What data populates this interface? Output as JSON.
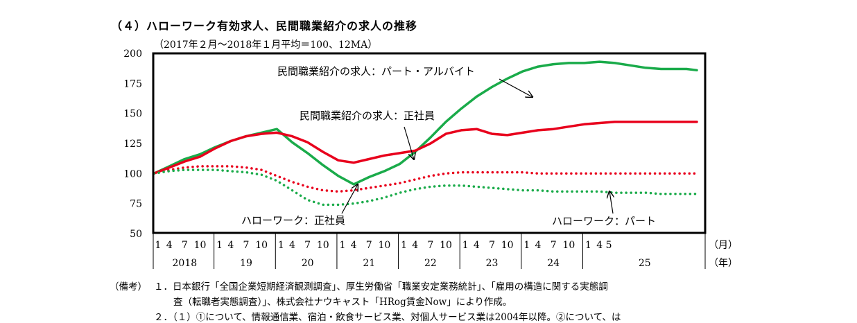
{
  "section_title": "（４）ハローワーク有効求人、民間職業紹介の求人の推移",
  "notes": {
    "label": "（備考）",
    "line1": "１．日本銀行「全国企業短期経済観測調査」、厚生労働省「職業安定業務統計」、「雇用の構造に関する実態調",
    "line2": "査（転職者実態調査）」、株式会社ナウキャスト「HRog賃金Now」により作成。",
    "line3": "２．（１）①について、情報通信業、宿泊・飲食サービス業、対個人サービス業は2004年以降。②について、は"
  },
  "chart_data": {
    "type": "line",
    "subtitle": "（2017年２月～2018年１月平均＝100、12MA）",
    "ylim": [
      50,
      200
    ],
    "yticks": [
      "200",
      "175",
      "150",
      "125",
      "100",
      "75",
      "50"
    ],
    "month_label": "（月）",
    "year_label": "（年）",
    "month_ticks": [
      [
        "1",
        "4",
        "7",
        "10"
      ],
      [
        "1",
        "4",
        "7",
        "10"
      ],
      [
        "1",
        "4",
        "7",
        "10"
      ],
      [
        "1",
        "4",
        "7",
        "10"
      ],
      [
        "1",
        "4",
        "7",
        "10"
      ],
      [
        "1",
        "4",
        "7",
        "10"
      ],
      [
        "1",
        "4",
        "7",
        "10"
      ],
      [
        "1",
        "4",
        "5"
      ]
    ],
    "years": [
      "2018",
      "19",
      "20",
      "21",
      "22",
      "23",
      "24",
      "25"
    ],
    "colors": {
      "red": "#e8001c",
      "green": "#1aab4a"
    },
    "series": [
      {
        "name": "民間職業紹介の求人：パート・アルバイト",
        "style": "solid",
        "color": "green",
        "x": [
          0,
          3,
          6,
          9,
          12,
          15,
          18,
          21,
          24,
          27,
          30,
          33,
          36,
          39,
          42,
          45,
          48,
          51,
          54,
          57,
          60,
          63,
          66,
          69,
          72,
          75,
          78,
          81,
          84,
          87,
          90,
          93,
          96,
          99,
          102,
          104,
          106
        ],
        "values": [
          100,
          106,
          112,
          116,
          122,
          127,
          131,
          134,
          137,
          126,
          117,
          107,
          98,
          91,
          97,
          102,
          108,
          118,
          130,
          143,
          154,
          164,
          172,
          179,
          185,
          189,
          191,
          192,
          192,
          193,
          192,
          190,
          188,
          187,
          187,
          187,
          186
        ]
      },
      {
        "name": "民間職業紹介の求人：正社員",
        "style": "solid",
        "color": "red",
        "x": [
          0,
          3,
          6,
          9,
          12,
          15,
          18,
          21,
          24,
          27,
          30,
          33,
          36,
          39,
          42,
          45,
          48,
          51,
          54,
          57,
          60,
          63,
          66,
          69,
          72,
          75,
          78,
          81,
          84,
          87,
          90,
          93,
          96,
          99,
          102,
          104,
          106
        ],
        "values": [
          100,
          105,
          110,
          114,
          121,
          127,
          131,
          133,
          134,
          131,
          126,
          118,
          111,
          109,
          112,
          115,
          117,
          119,
          125,
          133,
          136,
          137,
          133,
          132,
          134,
          136,
          137,
          139,
          141,
          142,
          143,
          143,
          143,
          143,
          143,
          143,
          143
        ]
      },
      {
        "name": "ハローワーク：正社員",
        "style": "dotted",
        "color": "red",
        "x": [
          0,
          3,
          6,
          9,
          12,
          15,
          18,
          21,
          24,
          27,
          30,
          33,
          36,
          39,
          42,
          45,
          48,
          51,
          54,
          57,
          60,
          63,
          66,
          69,
          72,
          75,
          78,
          81,
          84,
          87,
          90,
          93,
          96,
          99,
          102,
          104,
          106
        ],
        "values": [
          100,
          103,
          105,
          106,
          106,
          106,
          105,
          103,
          98,
          93,
          89,
          86,
          85,
          86,
          88,
          90,
          92,
          95,
          98,
          100,
          101,
          101,
          101,
          101,
          101,
          100,
          100,
          100,
          100,
          100,
          100,
          100,
          100,
          100,
          100,
          100,
          100
        ]
      },
      {
        "name": "ハローワーク：パート",
        "style": "dotted",
        "color": "green",
        "x": [
          0,
          3,
          6,
          9,
          12,
          15,
          18,
          21,
          24,
          27,
          30,
          33,
          36,
          39,
          42,
          45,
          48,
          51,
          54,
          57,
          60,
          63,
          66,
          69,
          72,
          75,
          78,
          81,
          84,
          87,
          90,
          93,
          96,
          99,
          102,
          104,
          106
        ],
        "values": [
          100,
          102,
          103,
          103,
          103,
          102,
          101,
          99,
          94,
          86,
          78,
          74,
          74,
          75,
          77,
          80,
          84,
          87,
          89,
          90,
          90,
          89,
          88,
          87,
          86,
          86,
          85,
          85,
          85,
          85,
          84,
          84,
          84,
          83,
          83,
          83,
          83
        ]
      }
    ],
    "annotations": [
      {
        "text": "民間職業紹介の求人：パート・アルバイト"
      },
      {
        "text": "民間職業紹介の求人：正社員"
      },
      {
        "text": "ハローワーク：正社員"
      },
      {
        "text": "ハローワーク：パート"
      }
    ]
  }
}
